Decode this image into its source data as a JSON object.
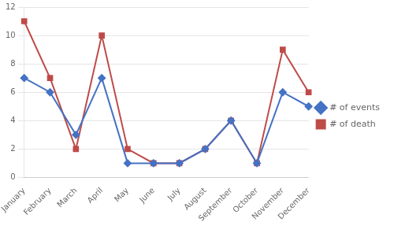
{
  "chart_data": {
    "type": "line",
    "categories": [
      "January",
      "February",
      "March",
      "April",
      "May",
      "June",
      "July",
      "August",
      "September",
      "October",
      "November",
      "December"
    ],
    "series": [
      {
        "name": "# of events",
        "color": "#4472C4",
        "marker": "diamond",
        "values": [
          7,
          6,
          3,
          7,
          1,
          1,
          1,
          2,
          4,
          1,
          6,
          5
        ]
      },
      {
        "name": "# of death",
        "color": "#BE4B48",
        "marker": "square",
        "values": [
          11,
          7,
          2,
          10,
          2,
          1,
          1,
          2,
          4,
          1,
          9,
          6
        ]
      }
    ],
    "ylim": [
      0,
      12
    ],
    "yticks": [
      0,
      2,
      4,
      6,
      8,
      10,
      12
    ],
    "grid": "y",
    "legend": "right"
  }
}
